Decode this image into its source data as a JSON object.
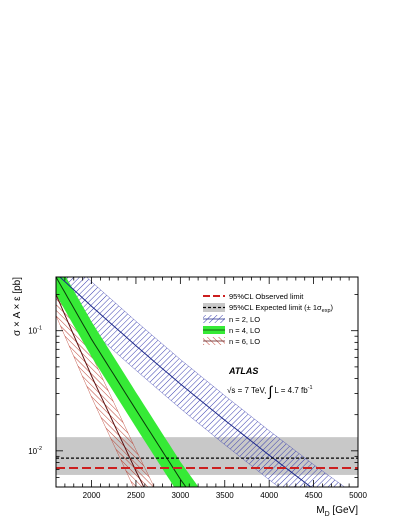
{
  "chart_data": {
    "type": "line",
    "xlabel_main": "M",
    "xlabel_sub": "D",
    "xlabel_unit": " [GeV]",
    "ylabel": "σ × A × ε [pb]",
    "xlim": [
      1600,
      5000
    ],
    "ylim": [
      0.005,
      0.28
    ],
    "y_scale": "log",
    "x_ticks": [
      2000,
      2500,
      3000,
      3500,
      4000,
      4500,
      5000
    ],
    "x_tick_labels": [
      "2000",
      "2500",
      "3000",
      "3500",
      "4000",
      "4500",
      "5000"
    ],
    "y_ticks": [
      0.01,
      0.1
    ],
    "y_tick_labels": [
      {
        "base": "10",
        "exp": "-2"
      },
      {
        "base": "10",
        "exp": "-1"
      }
    ],
    "observed_limit": 0.0072,
    "expected_limit": 0.0087,
    "expected_band": [
      0.0063,
      0.013
    ],
    "series": [
      {
        "name": "n = 2, LO",
        "color": "#1f2a8a",
        "band_color": "#3a3fb0",
        "band_style": "hatch",
        "x": [
          1600,
          2000,
          2500,
          3000,
          3500,
          4000,
          4500,
          5000
        ],
        "y": [
          0.3,
          0.16,
          0.075,
          0.036,
          0.018,
          0.0092,
          0.0048,
          0.0026
        ],
        "band_factor": 1.6
      },
      {
        "name": "n = 4, LO",
        "color": "#0a3a0a",
        "band_color": "#36ea36",
        "band_style": "solid",
        "x": [
          1600,
          2000,
          2500,
          3000,
          3250
        ],
        "y": [
          0.28,
          0.085,
          0.022,
          0.0058,
          0.0032
        ],
        "band_factor": 1.4
      },
      {
        "name": "n = 6, LO",
        "color": "#5a1010",
        "band_color": "#b83020",
        "band_style": "hatch",
        "x": [
          1600,
          2000,
          2500,
          2700
        ],
        "y": [
          0.2,
          0.042,
          0.0068,
          0.0034
        ],
        "band_factor": 1.5
      }
    ],
    "legend": [
      {
        "label": "95%CL Observed limit",
        "style": "observed"
      },
      {
        "label": "95%CL Expected limit (± 1σ",
        "sub": "exp",
        "tail": ")",
        "style": "expected"
      },
      {
        "label": "n = 2, LO",
        "style": "n2"
      },
      {
        "label": "n = 4, LO",
        "style": "n4"
      },
      {
        "label": "n = 6, LO",
        "style": "n6"
      }
    ],
    "annotation_atlas": "ATLAS",
    "annotation_energy": "√s = 7 TeV, ",
    "annotation_lumi": "L = 4.7 fb",
    "annotation_lumi_exp": "-1",
    "legend_position": "top-right",
    "grid": false,
    "colors": {
      "observed": "#cc1f1f",
      "expected": "#000000",
      "expected_band": "#c8c8c8"
    }
  }
}
